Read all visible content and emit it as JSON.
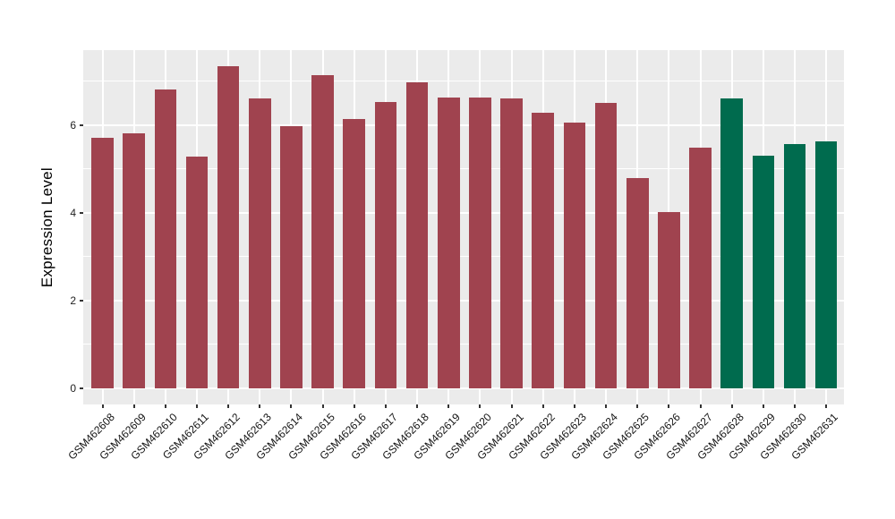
{
  "chart_data": {
    "type": "bar",
    "title": "",
    "xlabel": "",
    "ylabel": "Expression Level",
    "categories": [
      "GSM462608",
      "GSM462609",
      "GSM462610",
      "GSM462611",
      "GSM462612",
      "GSM462613",
      "GSM462614",
      "GSM462615",
      "GSM462616",
      "GSM462617",
      "GSM462618",
      "GSM462619",
      "GSM462620",
      "GSM462621",
      "GSM462622",
      "GSM462623",
      "GSM462624",
      "GSM462625",
      "GSM462626",
      "GSM462627",
      "GSM462628",
      "GSM462629",
      "GSM462630",
      "GSM462631"
    ],
    "values": [
      5.7,
      5.8,
      6.8,
      5.28,
      7.33,
      6.6,
      5.98,
      7.13,
      6.14,
      6.53,
      6.97,
      6.63,
      6.62,
      6.6,
      6.27,
      6.05,
      6.5,
      4.78,
      4.02,
      5.49,
      6.6,
      5.29,
      5.57,
      5.63
    ],
    "bar_colors": [
      "#A0434F",
      "#A0434F",
      "#A0434F",
      "#A0434F",
      "#A0434F",
      "#A0434F",
      "#A0434F",
      "#A0434F",
      "#A0434F",
      "#A0434F",
      "#A0434F",
      "#A0434F",
      "#A0434F",
      "#A0434F",
      "#A0434F",
      "#A0434F",
      "#A0434F",
      "#A0434F",
      "#A0434F",
      "#A0434F",
      "#006B4E",
      "#006B4E",
      "#006B4E",
      "#006B4E"
    ],
    "ytick_labels": [
      "0",
      "2",
      "4",
      "6"
    ],
    "ytick_values": [
      0,
      2,
      4,
      6
    ],
    "minor_grid_values": [
      1,
      3,
      5,
      7
    ],
    "ylim": [
      -0.37,
      7.7
    ],
    "grid": "white major and minor horizontal lines, white vertical line per category",
    "legend_position": "none",
    "panel_background": "#EBEBEB",
    "grid_color": "#FFFFFF"
  }
}
